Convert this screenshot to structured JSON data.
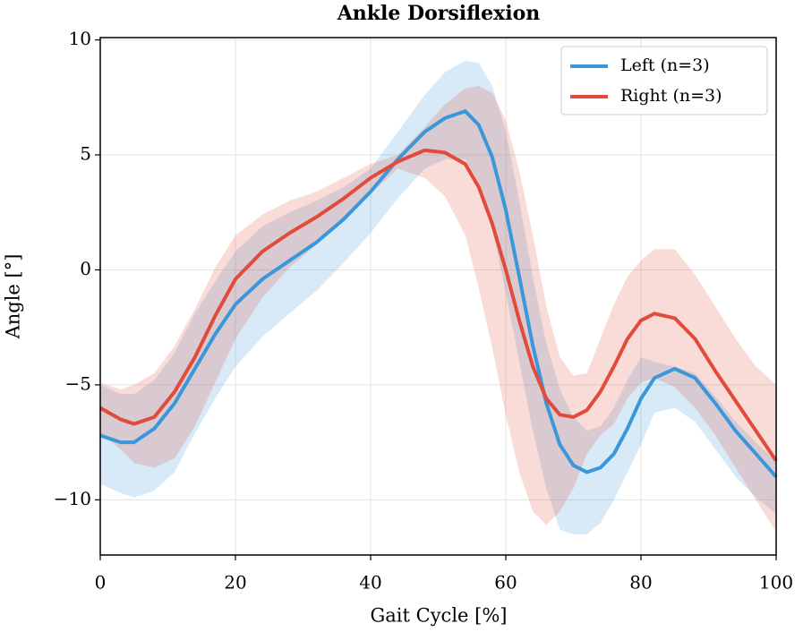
{
  "chart_data": {
    "type": "line",
    "title": "Ankle Dorsiflexion",
    "x_label": "Gait Cycle [%]",
    "y_label": "Angle [°]",
    "x": [
      0,
      3,
      5,
      8,
      11,
      14,
      17,
      20,
      24,
      28,
      32,
      36,
      40,
      44,
      48,
      51,
      54,
      56,
      58,
      60,
      62,
      64,
      66,
      68,
      70,
      72,
      74,
      76,
      78,
      80,
      82,
      85,
      88,
      91,
      94,
      97,
      100
    ],
    "series": [
      {
        "name": "Left (n=3)",
        "color": "#3a97d9",
        "values": [
          -7.2,
          -7.5,
          -7.5,
          -6.9,
          -5.8,
          -4.3,
          -2.8,
          -1.5,
          -0.4,
          0.4,
          1.2,
          2.2,
          3.4,
          4.8,
          6.0,
          6.6,
          6.9,
          6.3,
          4.9,
          2.6,
          -0.3,
          -3.3,
          -5.8,
          -7.6,
          -8.5,
          -8.8,
          -8.6,
          -8.0,
          -6.9,
          -5.6,
          -4.7,
          -4.3,
          -4.7,
          -5.8,
          -7.0,
          -8.0,
          -9.0
        ],
        "band_upper": [
          -5.0,
          -5.4,
          -5.4,
          -4.8,
          -3.6,
          -1.9,
          -0.5,
          0.8,
          1.9,
          2.5,
          3.0,
          3.6,
          4.4,
          6.0,
          7.6,
          8.6,
          9.1,
          9.0,
          8.0,
          6.0,
          3.0,
          -0.3,
          -3.2,
          -5.2,
          -6.4,
          -7.0,
          -6.8,
          -6.0,
          -4.8,
          -3.8,
          -4.0,
          -4.2,
          -4.5,
          -5.5,
          -6.6,
          -7.5,
          -8.3
        ],
        "band_lower": [
          -9.3,
          -9.7,
          -9.9,
          -9.6,
          -8.8,
          -7.1,
          -5.6,
          -4.2,
          -2.9,
          -1.9,
          -0.9,
          0.3,
          1.6,
          3.1,
          4.4,
          4.8,
          4.8,
          3.8,
          1.8,
          -1.0,
          -4.0,
          -7.0,
          -9.5,
          -11.3,
          -11.5,
          -11.5,
          -11.0,
          -10.0,
          -8.8,
          -7.6,
          -6.2,
          -6.0,
          -6.6,
          -7.8,
          -9.0,
          -9.9,
          -10.6
        ]
      },
      {
        "name": "Right (n=3)",
        "color": "#e24a3b",
        "values": [
          -6.0,
          -6.5,
          -6.7,
          -6.4,
          -5.3,
          -3.8,
          -2.0,
          -0.4,
          0.8,
          1.6,
          2.3,
          3.1,
          4.0,
          4.7,
          5.2,
          5.1,
          4.6,
          3.6,
          2.0,
          0.0,
          -2.2,
          -4.2,
          -5.6,
          -6.3,
          -6.4,
          -6.1,
          -5.3,
          -4.2,
          -3.0,
          -2.2,
          -1.9,
          -2.1,
          -3.0,
          -4.4,
          -5.7,
          -7.0,
          -8.3
        ],
        "band_upper": [
          -4.9,
          -5.2,
          -5.0,
          -4.5,
          -3.3,
          -1.7,
          0.1,
          1.5,
          2.4,
          3.0,
          3.4,
          4.0,
          4.6,
          5.0,
          6.2,
          7.2,
          7.9,
          8.0,
          7.7,
          6.5,
          4.3,
          1.5,
          -1.6,
          -3.8,
          -4.6,
          -4.5,
          -3.0,
          -1.5,
          -0.3,
          0.4,
          0.9,
          0.9,
          -0.2,
          -1.6,
          -3.0,
          -4.2,
          -5.0
        ],
        "band_lower": [
          -7.1,
          -7.8,
          -8.4,
          -8.6,
          -8.2,
          -6.8,
          -4.9,
          -3.0,
          -1.2,
          0.1,
          1.1,
          2.2,
          3.3,
          4.4,
          4.0,
          3.2,
          1.5,
          -0.8,
          -3.4,
          -6.3,
          -8.8,
          -10.5,
          -11.1,
          -10.5,
          -9.5,
          -8.0,
          -7.2,
          -6.7,
          -5.6,
          -4.9,
          -4.7,
          -5.1,
          -6.0,
          -7.2,
          -8.6,
          -10.0,
          -11.4
        ]
      }
    ],
    "xlim": [
      0,
      100
    ],
    "xticks": [
      0,
      20,
      40,
      60,
      80,
      100
    ],
    "ylim": [
      -12.4,
      10.1
    ],
    "yticks": [
      {
        "value": -10,
        "label": "−10"
      },
      {
        "value": -5,
        "label": "−5"
      },
      0,
      5,
      10
    ],
    "grid": true,
    "legend": "upper right"
  }
}
